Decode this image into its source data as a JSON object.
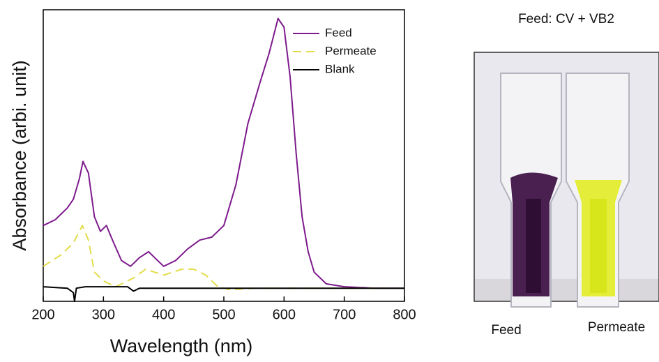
{
  "chart_data": {
    "type": "line",
    "xlabel": "Wavelength (nm)",
    "ylabel": "Absorbance (arbi. unit)",
    "xlim": [
      200,
      800
    ],
    "ylim": [
      0,
      1
    ],
    "xticks": [
      200,
      300,
      400,
      500,
      600,
      700,
      800
    ],
    "legend": "upper right",
    "series": [
      {
        "name": "Feed",
        "color": "#7d1a8c",
        "dash": "solid",
        "x": [
          200,
          220,
          240,
          250,
          260,
          266,
          275,
          285,
          295,
          305,
          315,
          330,
          345,
          360,
          375,
          385,
          400,
          420,
          440,
          460,
          480,
          500,
          520,
          540,
          560,
          575,
          590,
          600,
          610,
          620,
          630,
          640,
          650,
          670,
          700,
          750,
          800
        ],
        "values": [
          0.26,
          0.28,
          0.32,
          0.35,
          0.42,
          0.48,
          0.44,
          0.29,
          0.24,
          0.26,
          0.21,
          0.14,
          0.12,
          0.15,
          0.17,
          0.15,
          0.12,
          0.14,
          0.18,
          0.21,
          0.22,
          0.26,
          0.4,
          0.61,
          0.75,
          0.85,
          0.97,
          0.94,
          0.77,
          0.51,
          0.29,
          0.17,
          0.1,
          0.06,
          0.05,
          0.045,
          0.045
        ]
      },
      {
        "name": "Permeate",
        "color": "#e3dc4a",
        "dash": "dashed",
        "x": [
          200,
          230,
          250,
          265,
          275,
          285,
          300,
          320,
          350,
          370,
          385,
          400,
          430,
          450,
          470,
          490,
          510,
          550,
          600,
          700,
          800
        ],
        "values": [
          0.12,
          0.16,
          0.2,
          0.26,
          0.21,
          0.1,
          0.07,
          0.05,
          0.08,
          0.11,
          0.1,
          0.09,
          0.11,
          0.11,
          0.09,
          0.05,
          0.04,
          0.045,
          0.045,
          0.045,
          0.045
        ]
      },
      {
        "name": "Blank",
        "color": "#000000",
        "dash": "solid",
        "x": [
          200,
          240,
          250,
          252,
          255,
          270,
          340,
          350,
          360,
          800
        ],
        "values": [
          0.05,
          0.045,
          0.03,
          0.0,
          0.045,
          0.05,
          0.05,
          0.035,
          0.045,
          0.045
        ]
      }
    ]
  },
  "photo": {
    "title": "Feed: CV + VB2",
    "labels": [
      "Feed",
      "Permeate"
    ]
  }
}
